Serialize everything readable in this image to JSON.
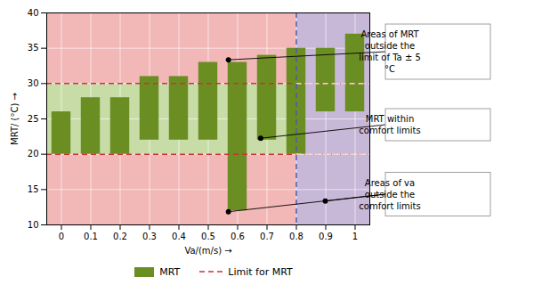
{
  "chart_data": {
    "type": "bar",
    "x": [
      0,
      0.1,
      0.2,
      0.3,
      0.4,
      0.5,
      0.6,
      0.7,
      0.8,
      0.9,
      1.0
    ],
    "series": [
      {
        "name": "MRT",
        "color": "#6b8e23",
        "bottoms": [
          20,
          20,
          20,
          22,
          22,
          22,
          12,
          22,
          20,
          26,
          26
        ],
        "values": [
          26,
          28,
          28,
          31,
          31,
          33,
          33,
          34,
          35,
          35,
          37
        ]
      }
    ],
    "xlabel": "Va/(m/s)",
    "ylabel": "MRT/ (°C)",
    "xlim": [
      -0.05,
      1.05
    ],
    "ylim": [
      10,
      40
    ],
    "xticks": [
      0,
      0.1,
      0.2,
      0.3,
      0.4,
      0.5,
      0.6,
      0.7,
      0.8,
      0.9,
      1
    ],
    "yticks": [
      10,
      15,
      20,
      25,
      30,
      35,
      40
    ],
    "grid": true,
    "legend": "bottom",
    "regions": [
      {
        "x": [
          -0.05,
          1.05
        ],
        "y": [
          10,
          40
        ],
        "color": "#f2b8b8"
      },
      {
        "x": [
          -0.05,
          0.8
        ],
        "y": [
          20,
          30
        ],
        "color": "#c8dca8"
      },
      {
        "x": [
          0.8,
          1.05
        ],
        "y": [
          10,
          40
        ],
        "color": "#c8b8d8"
      }
    ],
    "limit_lines": {
      "name": "Limit for MRT",
      "color": "#cc3333",
      "line_style": "dashed",
      "values": [
        20,
        30
      ]
    },
    "vertical_line": {
      "x": 0.8,
      "color": "#5555aa",
      "line_style": "dashed"
    },
    "annotations": [
      {
        "text": "Areas of MRT\noutside the\nlimit of Ta ± 5\n°C",
        "points": [
          [
            0.57,
            33.3
          ]
        ]
      },
      {
        "text": "MRT within\ncomfort limits",
        "points": [
          [
            0.68,
            22.2
          ]
        ]
      },
      {
        "text": "Areas of va\noutside the\ncomfort limits",
        "points": [
          [
            0.57,
            11.8
          ],
          [
            0.9,
            13.3
          ]
        ]
      }
    ]
  }
}
